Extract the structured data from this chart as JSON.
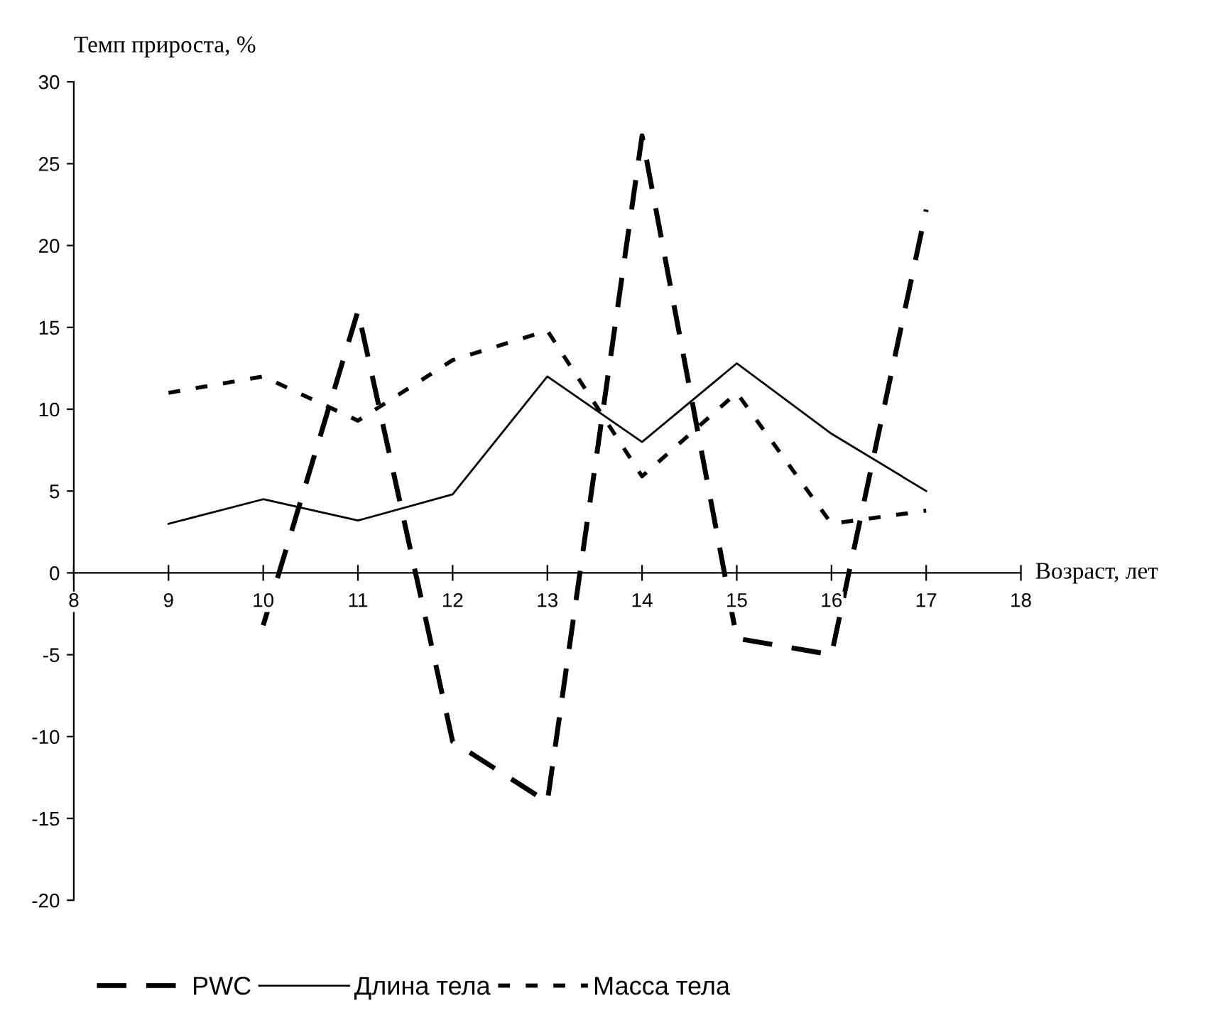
{
  "chart_data": {
    "type": "line",
    "xlabel": "Возраст, лет",
    "ylabel": "Темп прироста, %",
    "xlim": [
      8,
      18
    ],
    "xticks": [
      8,
      9,
      10,
      11,
      12,
      13,
      14,
      15,
      16,
      17,
      18
    ],
    "ylim": [
      -20,
      30
    ],
    "yticks": [
      -20,
      -15,
      -10,
      -5,
      0,
      5,
      10,
      15,
      20,
      25,
      30
    ],
    "x": [
      9,
      10,
      11,
      12,
      13,
      14,
      15,
      16,
      17
    ],
    "series": [
      {
        "name": "PWC",
        "color": "#000000",
        "line_style": "dashed",
        "values": [
          null,
          -3.2,
          16,
          -10.3,
          -14,
          26.7,
          -4,
          -5,
          22.2
        ]
      },
      {
        "name": "Длина тела",
        "color": "#000000",
        "line_style": "solid",
        "values": [
          3,
          4.5,
          3.2,
          4.8,
          12,
          8,
          12.8,
          8.5,
          5
        ]
      },
      {
        "name": "Масса тела",
        "color": "#000000",
        "line_style": "dotted",
        "values": [
          11,
          12,
          9.3,
          13,
          14.8,
          5.9,
          11,
          3,
          3.8
        ]
      }
    ],
    "grid": false,
    "legend": "bottom",
    "marker": "none"
  }
}
